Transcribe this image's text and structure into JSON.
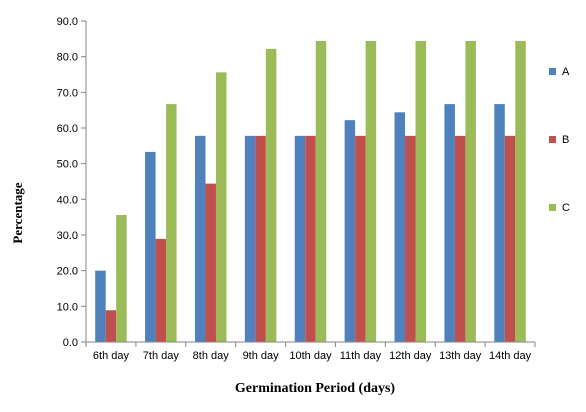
{
  "chart_data": {
    "type": "bar",
    "title": "",
    "xlabel": "Germination Period (days)",
    "ylabel": "Percentage",
    "ylim": [
      0,
      90
    ],
    "yticks": [
      "0.0",
      "10.0",
      "20.0",
      "30.0",
      "40.0",
      "50.0",
      "60.0",
      "70.0",
      "80.0",
      "90.0"
    ],
    "ytick_values": [
      0,
      10,
      20,
      30,
      40,
      50,
      60,
      70,
      80,
      90
    ],
    "categories": [
      "6th day",
      "7th day",
      "8th day",
      "9th day",
      "10th day",
      "11th day",
      "12th day",
      "13th day",
      "14th day"
    ],
    "series": [
      {
        "name": "A",
        "color": "#4F81BD",
        "values": [
          20.0,
          53.3,
          57.8,
          57.8,
          57.8,
          62.2,
          64.4,
          66.7,
          66.7
        ]
      },
      {
        "name": "B",
        "color": "#C0504D",
        "values": [
          8.9,
          28.9,
          44.4,
          57.8,
          57.8,
          57.8,
          57.8,
          57.8,
          57.8
        ]
      },
      {
        "name": "C",
        "color": "#9BBB59",
        "values": [
          35.6,
          66.7,
          75.6,
          82.2,
          84.4,
          84.4,
          84.4,
          84.4,
          84.4
        ]
      }
    ],
    "grid": false,
    "legend_position": "right"
  }
}
